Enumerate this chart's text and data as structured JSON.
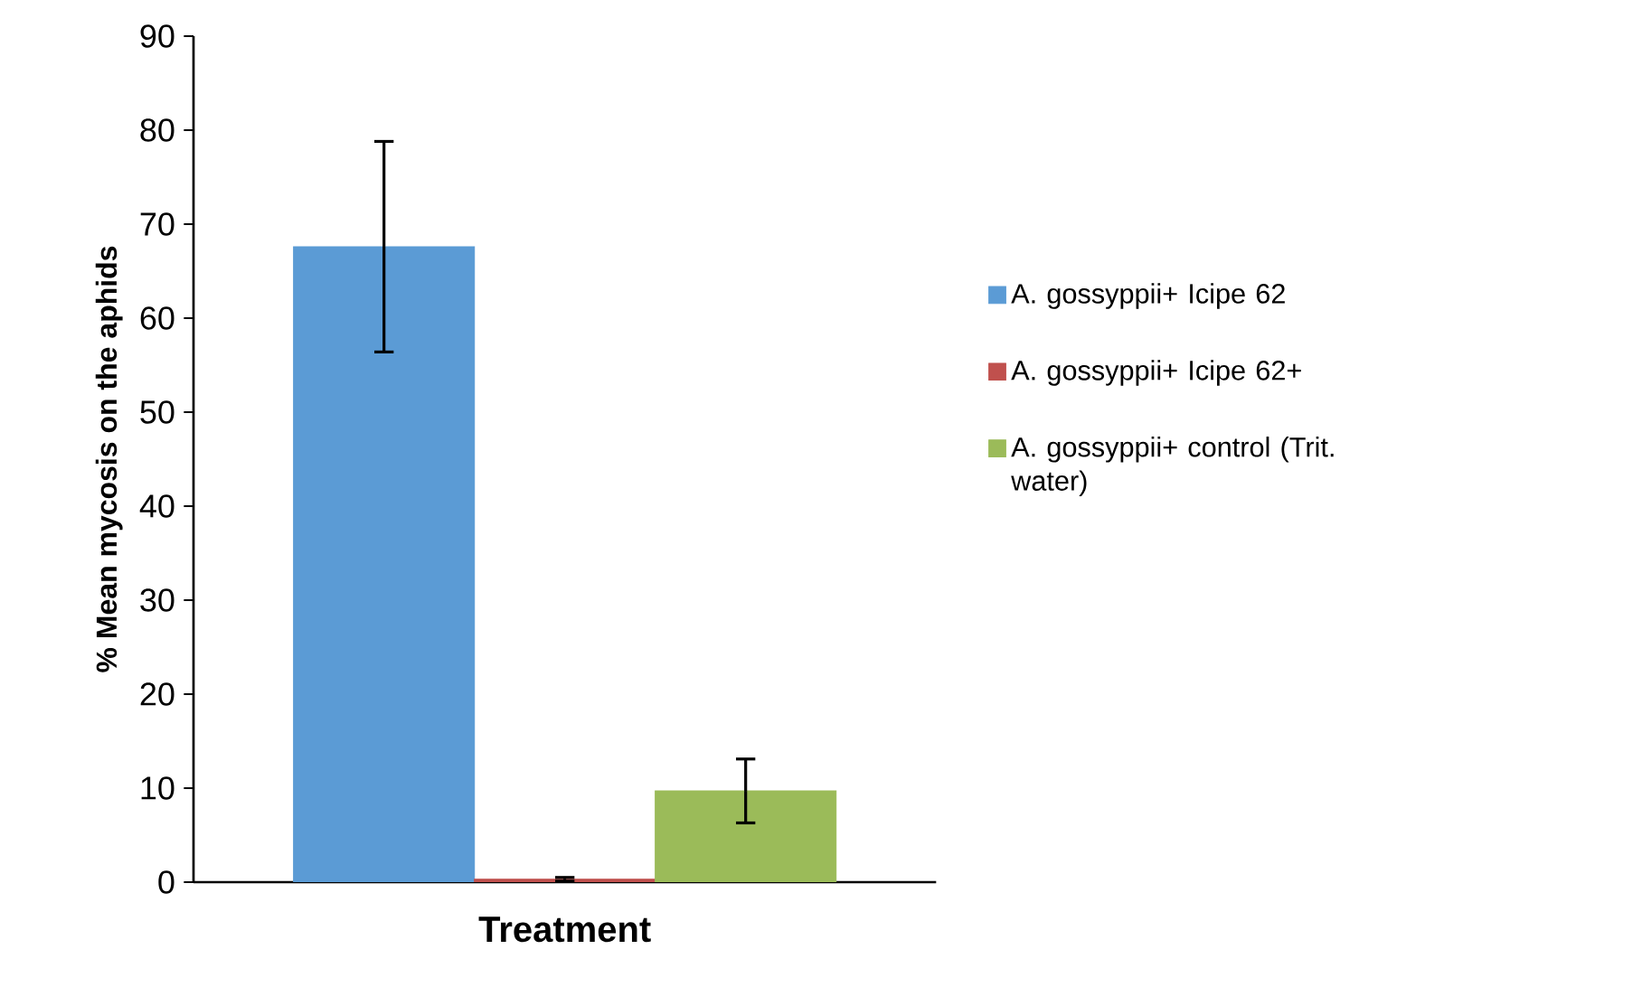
{
  "chart_data": {
    "type": "bar",
    "xlabel": "Treatment",
    "ylabel": "% Mean mycosis on the aphids",
    "categories": [
      null
    ],
    "series": [
      {
        "name": "A. gossyppii+ Icipe 62",
        "color": "#5b9bd5",
        "values": [
          67.6
        ],
        "errors": [
          11.2
        ]
      },
      {
        "name": "A. gossyppii+ Icipe 62+",
        "color": "#c0504d",
        "values": [
          0.3
        ],
        "errors": [
          0.2
        ]
      },
      {
        "name": "A. gossyppii+ control (Trit. water)",
        "color": "#9bbb59",
        "values": [
          9.7
        ],
        "errors": [
          3.4
        ]
      }
    ],
    "ylim": [
      0,
      90
    ],
    "yticks": [
      0,
      10,
      20,
      30,
      40,
      50,
      60,
      70,
      80,
      90
    ],
    "legend": "right",
    "grid": false
  }
}
